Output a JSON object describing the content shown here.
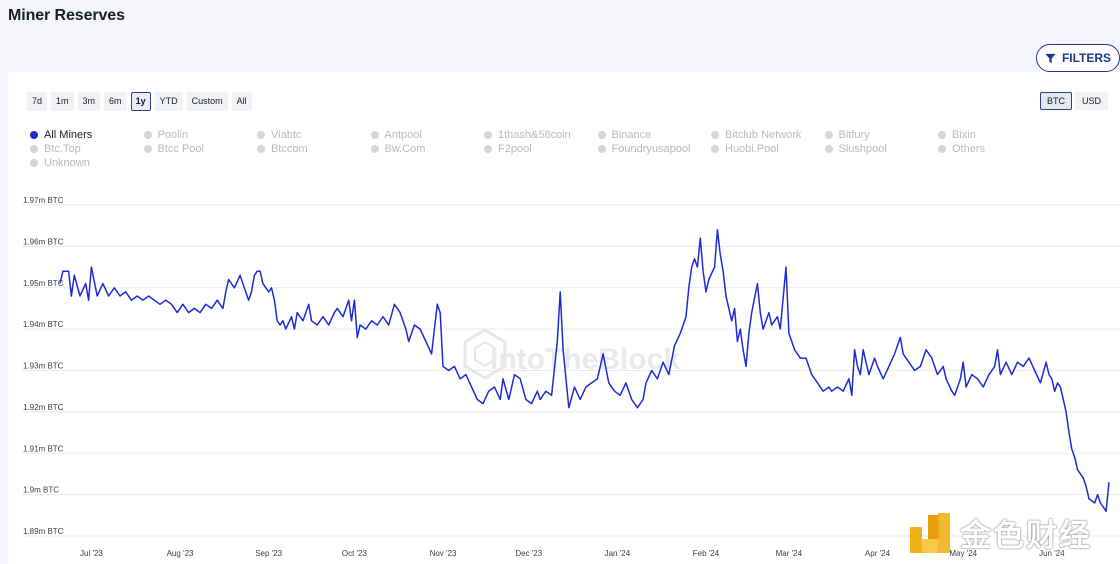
{
  "page": {
    "title": "Miner Reserves"
  },
  "filters": {
    "label": "FILTERS",
    "icon": "filter-icon"
  },
  "time_ranges": {
    "options": [
      "7d",
      "1m",
      "3m",
      "6m",
      "1y",
      "YTD",
      "Custom",
      "All"
    ],
    "selected": "1y"
  },
  "units": {
    "options": [
      "BTC",
      "USD"
    ],
    "selected": "BTC"
  },
  "legend": {
    "items": [
      {
        "label": "All Miners",
        "active": true
      },
      {
        "label": "Poolin",
        "active": false
      },
      {
        "label": "Viabtc",
        "active": false
      },
      {
        "label": "Antpool",
        "active": false
      },
      {
        "label": "1thash&58coin",
        "active": false
      },
      {
        "label": "Binance",
        "active": false
      },
      {
        "label": "Bitclub Network",
        "active": false
      },
      {
        "label": "Bitfury",
        "active": false
      },
      {
        "label": "Bixin",
        "active": false
      },
      {
        "label": "Btc.Top",
        "active": false
      },
      {
        "label": "Btcc Pool",
        "active": false
      },
      {
        "label": "Btccom",
        "active": false
      },
      {
        "label": "Bw.Com",
        "active": false
      },
      {
        "label": "F2pool",
        "active": false
      },
      {
        "label": "Foundryusapool",
        "active": false
      },
      {
        "label": "Huobi.Pool",
        "active": false
      },
      {
        "label": "Slushpool",
        "active": false
      },
      {
        "label": "Others",
        "active": false
      },
      {
        "label": "Unknown",
        "active": false
      }
    ]
  },
  "colors": {
    "series": "#1e2bd1",
    "accent": "#1b3a8c",
    "grid": "#e8eaef",
    "inactive": "#b6b9c2"
  },
  "watermark": {
    "text": "IntoTheBlock"
  },
  "brand": {
    "text": "金色财经"
  },
  "chart_data": {
    "type": "line",
    "y_tick_labels": [
      "1.89m BTC",
      "1.9m BTC",
      "1.91m BTC",
      "1.92m BTC",
      "1.93m BTC",
      "1.94m BTC",
      "1.95m BTC",
      "1.96m BTC",
      "1.97m BTC"
    ],
    "y_ticks": [
      1.89,
      1.9,
      1.91,
      1.92,
      1.93,
      1.94,
      1.95,
      1.96,
      1.97
    ],
    "ylim": [
      1.89,
      1.97
    ],
    "x_tick_labels": [
      "Jul '23",
      "Aug '23",
      "Sep '23",
      "Oct '23",
      "Nov '23",
      "Dec '23",
      "Jan '24",
      "Feb '24",
      "Mar '24",
      "Apr '24",
      "May '24",
      "Jun '24"
    ],
    "x_tick_dates": [
      "2023-07-01",
      "2023-08-01",
      "2023-09-01",
      "2023-10-01",
      "2023-11-01",
      "2023-12-01",
      "2024-01-01",
      "2024-02-01",
      "2024-03-01",
      "2024-04-01",
      "2024-05-01",
      "2024-06-01"
    ],
    "xlim": [
      "2023-06-20",
      "2024-06-21"
    ],
    "grid": true,
    "series": [
      {
        "name": "All Miners",
        "points": [
          [
            "2023-06-20",
            1.951
          ],
          [
            "2023-06-21",
            1.954
          ],
          [
            "2023-06-23",
            1.954
          ],
          [
            "2023-06-24",
            1.948
          ],
          [
            "2023-06-25",
            1.953
          ],
          [
            "2023-06-27",
            1.948
          ],
          [
            "2023-06-29",
            1.951
          ],
          [
            "2023-06-30",
            1.947
          ],
          [
            "2023-07-01",
            1.955
          ],
          [
            "2023-07-03",
            1.948
          ],
          [
            "2023-07-05",
            1.951
          ],
          [
            "2023-07-07",
            1.948
          ],
          [
            "2023-07-09",
            1.95
          ],
          [
            "2023-07-11",
            1.948
          ],
          [
            "2023-07-13",
            1.949
          ],
          [
            "2023-07-15",
            1.947
          ],
          [
            "2023-07-17",
            1.948
          ],
          [
            "2023-07-19",
            1.947
          ],
          [
            "2023-07-21",
            1.948
          ],
          [
            "2023-07-23",
            1.947
          ],
          [
            "2023-07-25",
            1.946
          ],
          [
            "2023-07-27",
            1.947
          ],
          [
            "2023-07-29",
            1.946
          ],
          [
            "2023-07-31",
            1.944
          ],
          [
            "2023-08-02",
            1.946
          ],
          [
            "2023-08-04",
            1.944
          ],
          [
            "2023-08-06",
            1.945
          ],
          [
            "2023-08-08",
            1.944
          ],
          [
            "2023-08-10",
            1.946
          ],
          [
            "2023-08-12",
            1.945
          ],
          [
            "2023-08-14",
            1.947
          ],
          [
            "2023-08-16",
            1.945
          ],
          [
            "2023-08-17",
            1.949
          ],
          [
            "2023-08-18",
            1.952
          ],
          [
            "2023-08-20",
            1.95
          ],
          [
            "2023-08-22",
            1.953
          ],
          [
            "2023-08-23",
            1.951
          ],
          [
            "2023-08-25",
            1.947
          ],
          [
            "2023-08-26",
            1.949
          ],
          [
            "2023-08-27",
            1.953
          ],
          [
            "2023-08-28",
            1.954
          ],
          [
            "2023-08-29",
            1.954
          ],
          [
            "2023-08-30",
            1.951
          ],
          [
            "2023-09-01",
            1.949
          ],
          [
            "2023-09-02",
            1.95
          ],
          [
            "2023-09-03",
            1.947
          ],
          [
            "2023-09-04",
            1.942
          ],
          [
            "2023-09-05",
            1.941
          ],
          [
            "2023-09-06",
            1.942
          ],
          [
            "2023-09-07",
            1.94
          ],
          [
            "2023-09-09",
            1.943
          ],
          [
            "2023-09-10",
            1.94
          ],
          [
            "2023-09-11",
            1.944
          ],
          [
            "2023-09-13",
            1.942
          ],
          [
            "2023-09-15",
            1.946
          ],
          [
            "2023-09-16",
            1.942
          ],
          [
            "2023-09-18",
            1.941
          ],
          [
            "2023-09-20",
            1.943
          ],
          [
            "2023-09-22",
            1.941
          ],
          [
            "2023-09-24",
            1.944
          ],
          [
            "2023-09-25",
            1.945
          ],
          [
            "2023-09-27",
            1.943
          ],
          [
            "2023-09-29",
            1.947
          ],
          [
            "2023-09-30",
            1.942
          ],
          [
            "2023-10-01",
            1.947
          ],
          [
            "2023-10-02",
            1.938
          ],
          [
            "2023-10-03",
            1.941
          ],
          [
            "2023-10-05",
            1.94
          ],
          [
            "2023-10-07",
            1.942
          ],
          [
            "2023-10-09",
            1.941
          ],
          [
            "2023-10-11",
            1.943
          ],
          [
            "2023-10-13",
            1.941
          ],
          [
            "2023-10-15",
            1.946
          ],
          [
            "2023-10-17",
            1.944
          ],
          [
            "2023-10-19",
            1.94
          ],
          [
            "2023-10-20",
            1.937
          ],
          [
            "2023-10-22",
            1.941
          ],
          [
            "2023-10-24",
            1.94
          ],
          [
            "2023-10-26",
            1.937
          ],
          [
            "2023-10-28",
            1.934
          ],
          [
            "2023-10-29",
            1.94
          ],
          [
            "2023-10-30",
            1.946
          ],
          [
            "2023-10-31",
            1.944
          ],
          [
            "2023-11-01",
            1.931
          ],
          [
            "2023-11-03",
            1.93
          ],
          [
            "2023-11-05",
            1.931
          ],
          [
            "2023-11-07",
            1.928
          ],
          [
            "2023-11-09",
            1.929
          ],
          [
            "2023-11-11",
            1.926
          ],
          [
            "2023-11-13",
            1.923
          ],
          [
            "2023-11-15",
            1.922
          ],
          [
            "2023-11-17",
            1.925
          ],
          [
            "2023-11-19",
            1.926
          ],
          [
            "2023-11-21",
            1.923
          ],
          [
            "2023-11-22",
            1.928
          ],
          [
            "2023-11-24",
            1.923
          ],
          [
            "2023-11-26",
            1.929
          ],
          [
            "2023-11-28",
            1.928
          ],
          [
            "2023-11-30",
            1.923
          ],
          [
            "2023-12-02",
            1.922
          ],
          [
            "2023-12-04",
            1.925
          ],
          [
            "2023-12-05",
            1.923
          ],
          [
            "2023-12-07",
            1.925
          ],
          [
            "2023-12-09",
            1.924
          ],
          [
            "2023-12-11",
            1.937
          ],
          [
            "2023-12-12",
            1.949
          ],
          [
            "2023-12-13",
            1.935
          ],
          [
            "2023-12-15",
            1.921
          ],
          [
            "2023-12-17",
            1.926
          ],
          [
            "2023-12-19",
            1.923
          ],
          [
            "2023-12-21",
            1.926
          ],
          [
            "2023-12-23",
            1.927
          ],
          [
            "2023-12-25",
            1.928
          ],
          [
            "2023-12-27",
            1.934
          ],
          [
            "2023-12-29",
            1.927
          ],
          [
            "2023-12-31",
            1.925
          ],
          [
            "2024-01-02",
            1.924
          ],
          [
            "2024-01-04",
            1.927
          ],
          [
            "2024-01-06",
            1.923
          ],
          [
            "2024-01-08",
            1.921
          ],
          [
            "2024-01-10",
            1.923
          ],
          [
            "2024-01-11",
            1.927
          ],
          [
            "2024-01-13",
            1.93
          ],
          [
            "2024-01-15",
            1.928
          ],
          [
            "2024-01-17",
            1.932
          ],
          [
            "2024-01-19",
            1.929
          ],
          [
            "2024-01-21",
            1.936
          ],
          [
            "2024-01-23",
            1.939
          ],
          [
            "2024-01-25",
            1.943
          ],
          [
            "2024-01-26",
            1.95
          ],
          [
            "2024-01-27",
            1.955
          ],
          [
            "2024-01-28",
            1.957
          ],
          [
            "2024-01-29",
            1.955
          ],
          [
            "2024-01-30",
            1.962
          ],
          [
            "2024-01-31",
            1.954
          ],
          [
            "2024-02-01",
            1.949
          ],
          [
            "2024-02-02",
            1.952
          ],
          [
            "2024-02-04",
            1.955
          ],
          [
            "2024-02-05",
            1.964
          ],
          [
            "2024-02-06",
            1.958
          ],
          [
            "2024-02-07",
            1.954
          ],
          [
            "2024-02-08",
            1.948
          ],
          [
            "2024-02-10",
            1.942
          ],
          [
            "2024-02-11",
            1.945
          ],
          [
            "2024-02-12",
            1.937
          ],
          [
            "2024-02-13",
            1.94
          ],
          [
            "2024-02-14",
            1.935
          ],
          [
            "2024-02-15",
            1.931
          ],
          [
            "2024-02-16",
            1.939
          ],
          [
            "2024-02-17",
            1.944
          ],
          [
            "2024-02-19",
            1.951
          ],
          [
            "2024-02-20",
            1.944
          ],
          [
            "2024-02-21",
            1.94
          ],
          [
            "2024-02-23",
            1.944
          ],
          [
            "2024-02-24",
            1.941
          ],
          [
            "2024-02-26",
            1.943
          ],
          [
            "2024-02-27",
            1.94
          ],
          [
            "2024-02-29",
            1.955
          ],
          [
            "2024-03-01",
            1.939
          ],
          [
            "2024-03-03",
            1.935
          ],
          [
            "2024-03-05",
            1.933
          ],
          [
            "2024-03-07",
            1.933
          ],
          [
            "2024-03-09",
            1.929
          ],
          [
            "2024-03-11",
            1.927
          ],
          [
            "2024-03-13",
            1.925
          ],
          [
            "2024-03-15",
            1.926
          ],
          [
            "2024-03-16",
            1.925
          ],
          [
            "2024-03-18",
            1.926
          ],
          [
            "2024-03-20",
            1.925
          ],
          [
            "2024-03-22",
            1.928
          ],
          [
            "2024-03-23",
            1.924
          ],
          [
            "2024-03-24",
            1.935
          ],
          [
            "2024-03-25",
            1.931
          ],
          [
            "2024-03-26",
            1.929
          ],
          [
            "2024-03-27",
            1.935
          ],
          [
            "2024-03-28",
            1.932
          ],
          [
            "2024-03-29",
            1.929
          ],
          [
            "2024-03-31",
            1.933
          ],
          [
            "2024-04-01",
            1.931
          ],
          [
            "2024-04-03",
            1.928
          ],
          [
            "2024-04-05",
            1.931
          ],
          [
            "2024-04-07",
            1.934
          ],
          [
            "2024-04-09",
            1.938
          ],
          [
            "2024-04-10",
            1.934
          ],
          [
            "2024-04-12",
            1.932
          ],
          [
            "2024-04-14",
            1.93
          ],
          [
            "2024-04-16",
            1.931
          ],
          [
            "2024-04-18",
            1.935
          ],
          [
            "2024-04-20",
            1.933
          ],
          [
            "2024-04-22",
            1.929
          ],
          [
            "2024-04-24",
            1.931
          ],
          [
            "2024-04-25",
            1.928
          ],
          [
            "2024-04-27",
            1.925
          ],
          [
            "2024-04-28",
            1.924
          ],
          [
            "2024-04-30",
            1.928
          ],
          [
            "2024-05-01",
            1.932
          ],
          [
            "2024-05-02",
            1.926
          ],
          [
            "2024-05-04",
            1.929
          ],
          [
            "2024-05-06",
            1.928
          ],
          [
            "2024-05-08",
            1.926
          ],
          [
            "2024-05-10",
            1.929
          ],
          [
            "2024-05-12",
            1.931
          ],
          [
            "2024-05-13",
            1.935
          ],
          [
            "2024-05-14",
            1.929
          ],
          [
            "2024-05-16",
            1.932
          ],
          [
            "2024-05-18",
            1.929
          ],
          [
            "2024-05-20",
            1.932
          ],
          [
            "2024-05-22",
            1.931
          ],
          [
            "2024-05-24",
            1.933
          ],
          [
            "2024-05-26",
            1.93
          ],
          [
            "2024-05-28",
            1.927
          ],
          [
            "2024-05-30",
            1.932
          ],
          [
            "2024-05-31",
            1.929
          ],
          [
            "2024-06-01",
            1.928
          ],
          [
            "2024-06-02",
            1.925
          ],
          [
            "2024-06-03",
            1.927
          ],
          [
            "2024-06-04",
            1.926
          ],
          [
            "2024-06-05",
            1.923
          ],
          [
            "2024-06-06",
            1.92
          ],
          [
            "2024-06-07",
            1.915
          ],
          [
            "2024-06-08",
            1.911
          ],
          [
            "2024-06-09",
            1.909
          ],
          [
            "2024-06-10",
            1.906
          ],
          [
            "2024-06-12",
            1.904
          ],
          [
            "2024-06-13",
            1.902
          ],
          [
            "2024-06-14",
            1.899
          ],
          [
            "2024-06-16",
            1.898
          ],
          [
            "2024-06-17",
            1.9
          ],
          [
            "2024-06-18",
            1.898
          ],
          [
            "2024-06-19",
            1.897
          ],
          [
            "2024-06-20",
            1.896
          ],
          [
            "2024-06-21",
            1.903
          ]
        ]
      }
    ]
  }
}
